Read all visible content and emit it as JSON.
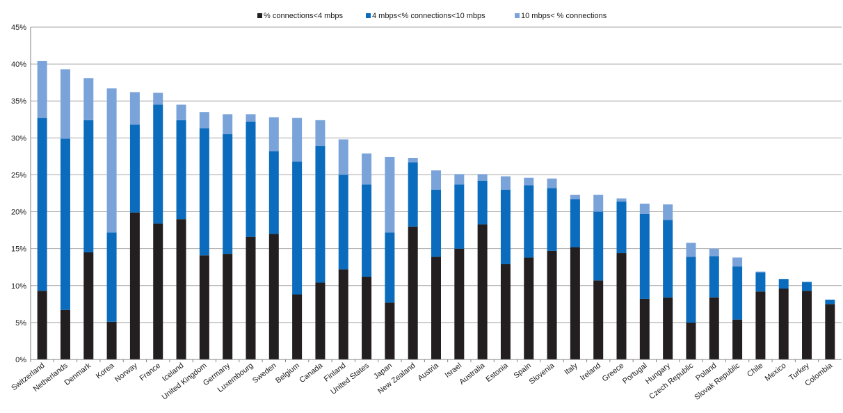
{
  "chart_data": {
    "type": "bar",
    "stacked": true,
    "title": "",
    "xlabel": "",
    "ylabel": "",
    "ylim": [
      0,
      45
    ],
    "yticks": [
      "0%",
      "5%",
      "10%",
      "15%",
      "20%",
      "25%",
      "30%",
      "35%",
      "40%",
      "45%"
    ],
    "grid": true,
    "legend_position": "top-center",
    "categories": [
      "Switzerland",
      "Netherlands",
      "Denmark",
      "Korea",
      "Norway",
      "France",
      "Iceland",
      "United Kingdom",
      "Germany",
      "Luxembourg",
      "Sweden",
      "Belgium",
      "Canada",
      "Finland",
      "United States",
      "Japan",
      "New Zealand",
      "Austria",
      "Israel",
      "Australia",
      "Estonia",
      "Spain",
      "Slovenia",
      "Italy",
      "Ireland",
      "Greece",
      "Portugal",
      "Hungary",
      "Czech Republic",
      "Poland",
      "Slovak Republic",
      "Chile",
      "Mexico",
      "Turkey",
      "Colombia"
    ],
    "series": [
      {
        "name": "% connections<4 mbps",
        "color": "#231f20",
        "values": [
          9.3,
          6.7,
          14.5,
          5.1,
          19.9,
          18.4,
          19.0,
          14.1,
          14.3,
          16.6,
          17.0,
          8.8,
          10.4,
          12.2,
          11.2,
          7.7,
          18.0,
          13.9,
          15.0,
          18.3,
          12.9,
          13.8,
          14.7,
          15.2,
          10.7,
          14.4,
          8.2,
          8.4,
          5.0,
          8.4,
          5.4,
          9.2,
          9.6,
          9.3,
          7.5
        ]
      },
      {
        "name": "4 mbps<% connections<10 mbps",
        "color": "#0b6cbd",
        "values": [
          23.4,
          23.2,
          17.9,
          12.1,
          11.9,
          16.1,
          13.4,
          17.2,
          16.2,
          15.6,
          11.2,
          18.0,
          18.5,
          12.8,
          12.5,
          9.5,
          8.7,
          9.1,
          8.7,
          5.9,
          10.1,
          9.8,
          8.5,
          6.5,
          9.3,
          7.0,
          11.5,
          10.5,
          8.9,
          5.6,
          7.2,
          2.6,
          1.3,
          1.2,
          0.6
        ]
      },
      {
        "name": "10 mbps< % connections",
        "color": "#7aa3d9",
        "values": [
          7.7,
          9.4,
          5.7,
          19.5,
          4.4,
          1.6,
          2.1,
          2.2,
          2.7,
          1.0,
          4.6,
          5.9,
          3.5,
          4.8,
          4.2,
          10.2,
          0.6,
          2.6,
          1.4,
          0.9,
          1.8,
          1.0,
          1.3,
          0.6,
          2.3,
          0.4,
          1.4,
          2.1,
          1.9,
          1.0,
          1.2,
          0.1,
          0.0,
          0.0,
          0.0
        ]
      }
    ]
  }
}
